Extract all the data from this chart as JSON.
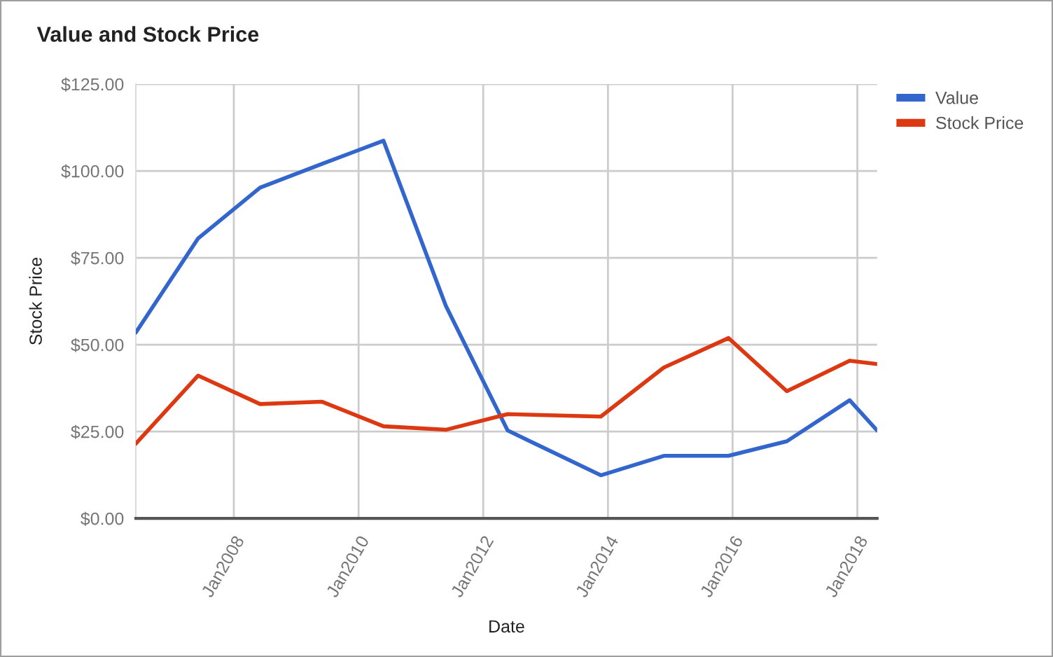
{
  "chart_data": {
    "type": "line",
    "title": "Value and Stock Price",
    "xlabel": "Date",
    "ylabel": "Stock Price",
    "x": [
      "2006-06-06",
      "2007-06-06",
      "2008-06-03",
      "2009-05-30",
      "2010-05-27",
      "2011-05-27",
      "2012-05-23",
      "2013-11-20",
      "2014-11-24",
      "2015-12-08",
      "2016-11-14",
      "2017-11-17",
      "2018-04-27"
    ],
    "series": [
      {
        "name": "Value",
        "color": "#3366cc",
        "values": [
          53.5,
          80.6,
          95.2,
          102,
          108.7,
          61.2,
          25.3,
          12.4,
          18.0,
          18.0,
          22.2,
          34.0,
          25.3
        ]
      },
      {
        "name": "Stock Price",
        "color": "#dc3912",
        "values": [
          21.5,
          41.1,
          32.9,
          33.6,
          26.5,
          25.5,
          30.0,
          29.3,
          43.4,
          51.9,
          36.6,
          45.4,
          44.4
        ]
      }
    ],
    "xlim": [
      "2006-06-06",
      "2018-04-27"
    ],
    "xticks": [
      {
        "value": "2008-01-01",
        "label": "Jan2008"
      },
      {
        "value": "2010-01-01",
        "label": "Jan2010"
      },
      {
        "value": "2012-01-01",
        "label": "Jan2012"
      },
      {
        "value": "2014-01-01",
        "label": "Jan2014"
      },
      {
        "value": "2016-01-01",
        "label": "Jan2016"
      },
      {
        "value": "2018-01-01",
        "label": "Jan2018"
      }
    ],
    "ylim": [
      0,
      125
    ],
    "yticks": [
      {
        "value": 0,
        "label": "$0.00"
      },
      {
        "value": 25,
        "label": "$25.00"
      },
      {
        "value": 50,
        "label": "$50.00"
      },
      {
        "value": 75,
        "label": "$75.00"
      },
      {
        "value": 100,
        "label": "$100.00"
      },
      {
        "value": 125,
        "label": "$125.00"
      }
    ],
    "grid": true,
    "legend": "top right",
    "marker": "none",
    "line_style": "solid"
  }
}
